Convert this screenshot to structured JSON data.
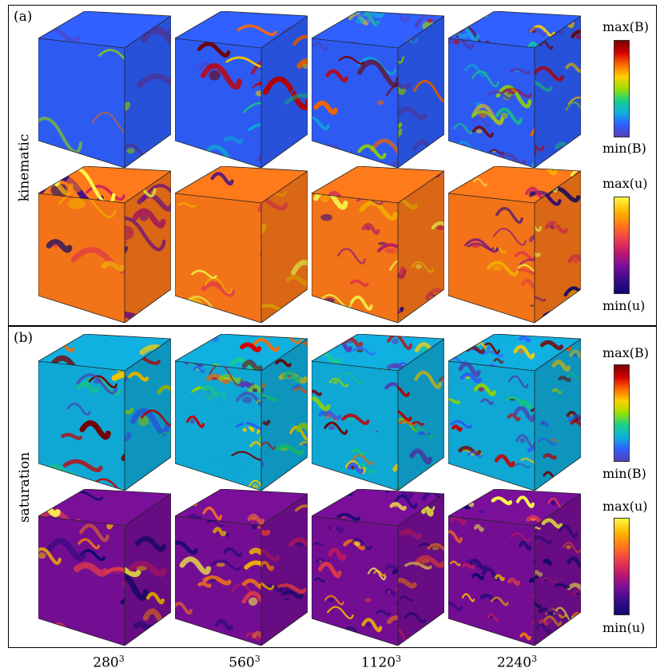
{
  "panels": {
    "a": {
      "label": "(a)",
      "row_label": "kinematic"
    },
    "b": {
      "label": "(b)",
      "row_label": "saturation"
    }
  },
  "colorbars": {
    "B": {
      "max_label": "max(B)",
      "min_label": "min(B)"
    },
    "u": {
      "max_label": "max(u)",
      "min_label": "min(u)"
    }
  },
  "resolutions": [
    {
      "base": "280",
      "exp": "3"
    },
    {
      "base": "560",
      "exp": "3"
    },
    {
      "base": "1120",
      "exp": "3"
    },
    {
      "base": "2240",
      "exp": "3"
    }
  ],
  "colors": {
    "B_map": [
      "#5540b8",
      "#3060ff",
      "#10b0e0",
      "#18d08a",
      "#9be000",
      "#ffd000",
      "#ff6a00",
      "#d40000",
      "#7a0000"
    ],
    "u_map": [
      "#0c0a70",
      "#3a0a8a",
      "#7a0f9a",
      "#c01a6c",
      "#ee3f4a",
      "#ff7a1a",
      "#ffb800",
      "#fff84a"
    ]
  }
}
